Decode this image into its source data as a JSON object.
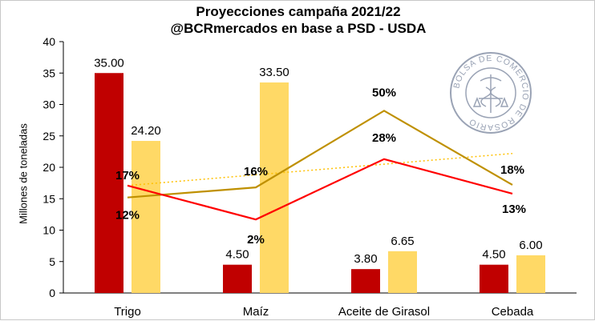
{
  "chart_data": {
    "type": "bar",
    "title": "Proyecciones campaña 2021/22",
    "subtitle": "@BCRmercados en base a PSD - USDA",
    "ylabel": "Millones de toneladas",
    "xlabel": "",
    "ylim": [
      0,
      40
    ],
    "yticks": [
      "0",
      "5",
      "10",
      "15",
      "20",
      "25",
      "30",
      "35",
      "40"
    ],
    "grid": false,
    "categories": [
      "Trigo",
      "Maíz",
      "Aceite de Girasol",
      "Cebada"
    ],
    "series": [
      {
        "type": "bar",
        "color": "#c00000",
        "values": [
          35.0,
          4.5,
          3.8,
          4.5
        ],
        "labels": [
          "35.00",
          "4.50",
          "3.80",
          "4.50"
        ]
      },
      {
        "type": "bar",
        "color": "#ffd966",
        "values": [
          24.2,
          33.5,
          6.65,
          6.0
        ],
        "labels": [
          "24.20",
          "33.50",
          "6.65",
          "6.00"
        ]
      },
      {
        "type": "line",
        "color": "#bf9000",
        "values": [
          15.2,
          16.8,
          29.0,
          17.2
        ],
        "labels": [
          "12%",
          "16%",
          "50%",
          "18%"
        ]
      },
      {
        "type": "line",
        "color": "#ff0000",
        "values": [
          17.1,
          11.7,
          21.3,
          15.8
        ],
        "labels": [
          "17%",
          "2%",
          "28%",
          "13%"
        ]
      },
      {
        "type": "trendline",
        "color": "#ffc000",
        "values": [
          17.1,
          18.8,
          20.5,
          22.2
        ]
      }
    ]
  },
  "seal": {
    "text": "BOLSA DE COMERCIO DE ROSARIO",
    "color": "#9aa3b5"
  }
}
